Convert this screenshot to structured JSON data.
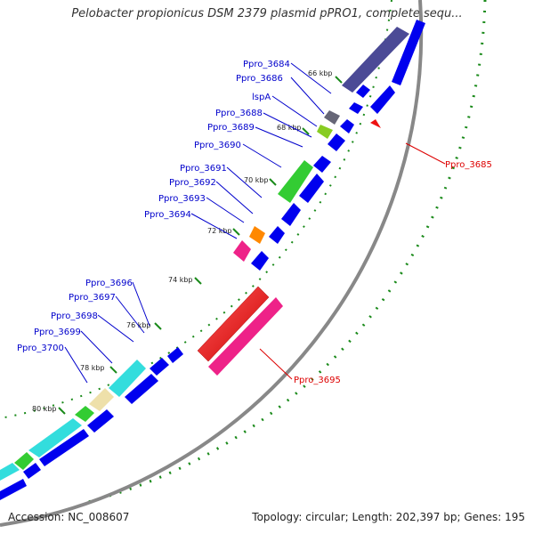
{
  "header": {
    "title": "Pelobacter propionicus DSM 2379 plasmid pPRO1, complete sequ..."
  },
  "footer": {
    "accession": "Accession: NC_008607",
    "summary": "Topology: circular; Length: 202,397 bp; Genes: 195"
  },
  "colors": {
    "plus_strand": "#0000ee",
    "minus_strand": "#0000ee",
    "label_blue": "#0000cc",
    "label_red": "#dd0000",
    "backbone": "#888888",
    "tick_green": "#1a8a1a"
  },
  "ticks": [
    {
      "label": "66 kbp"
    },
    {
      "label": "68 kbp"
    },
    {
      "label": "70 kbp"
    },
    {
      "label": "72 kbp"
    },
    {
      "label": "74 kbp"
    },
    {
      "label": "76 kbp"
    },
    {
      "label": "78 kbp"
    },
    {
      "label": "80 kbp"
    }
  ],
  "gene_labels": [
    {
      "name": "Ppro_3684"
    },
    {
      "name": "Ppro_3686"
    },
    {
      "name": "lspA"
    },
    {
      "name": "Ppro_3688"
    },
    {
      "name": "Ppro_3689"
    },
    {
      "name": "Ppro_3690"
    },
    {
      "name": "Ppro_3691"
    },
    {
      "name": "Ppro_3692"
    },
    {
      "name": "Ppro_3693"
    },
    {
      "name": "Ppro_3694"
    },
    {
      "name": "Ppro_3696"
    },
    {
      "name": "Ppro_3697"
    },
    {
      "name": "Ppro_3698"
    },
    {
      "name": "Ppro_3699"
    },
    {
      "name": "Ppro_3700"
    },
    {
      "name": "Ppro_3685"
    },
    {
      "name": "Ppro_3695"
    }
  ]
}
